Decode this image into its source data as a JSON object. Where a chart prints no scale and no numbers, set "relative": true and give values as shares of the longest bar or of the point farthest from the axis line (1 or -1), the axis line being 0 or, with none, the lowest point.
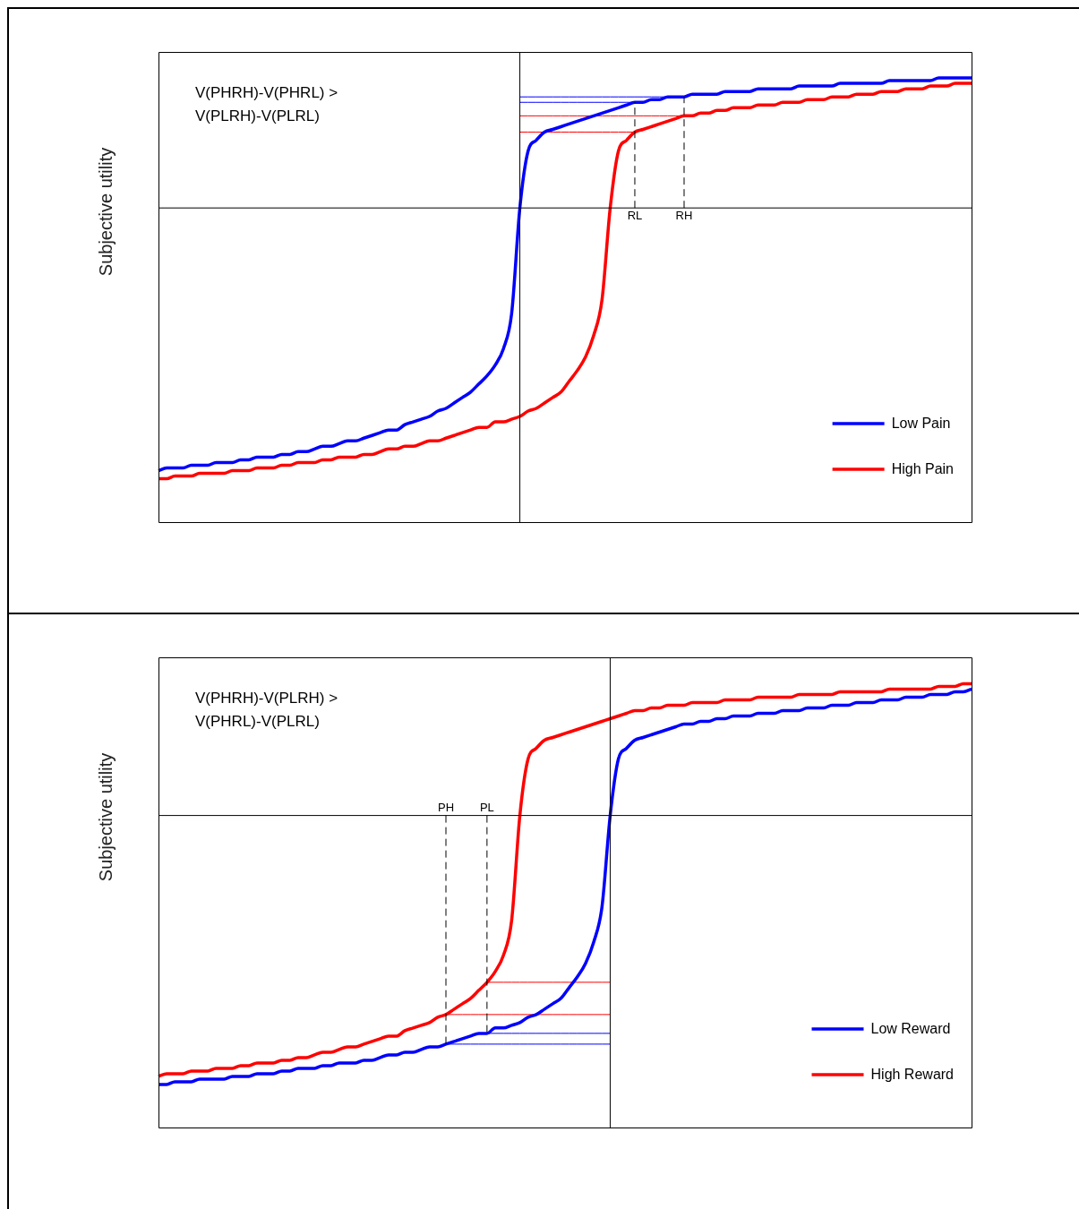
{
  "chart_data": [
    {
      "type": "line",
      "title": "V(PHRH)-V(PHRL) > V(PLRH)-V(PLRL)",
      "ylabel": "Subjective utility",
      "relative": true,
      "marker": "none",
      "tick_labels": false,
      "legend": "bottom right",
      "categories": [
        null,
        null,
        null,
        null,
        null,
        null,
        null,
        null,
        null,
        null,
        null,
        null,
        null,
        null,
        null,
        null,
        null,
        null,
        null,
        null,
        null,
        null,
        null,
        null,
        null,
        null,
        null,
        null,
        null,
        null,
        null,
        null,
        null,
        null,
        null,
        null,
        null,
        null,
        null,
        null,
        null,
        null,
        null,
        null,
        null,
        null,
        null,
        null,
        null,
        null,
        null,
        null,
        null,
        null,
        null,
        null,
        null,
        null,
        null,
        null,
        null,
        null,
        null,
        null,
        null,
        null,
        null,
        null,
        null,
        null,
        null,
        null,
        null,
        null,
        null,
        null,
        null,
        null,
        null,
        null,
        null,
        null,
        null,
        null,
        null,
        null,
        null,
        null,
        null,
        null,
        null,
        null,
        null,
        null,
        null,
        null,
        null,
        null,
        null,
        null
      ],
      "annotations": [
        "RL",
        "RH"
      ],
      "series": [
        {
          "name": "Low Pain",
          "color": "#0000ff",
          "values": [
            -0.97,
            -0.96,
            -0.96,
            -0.96,
            -0.95,
            -0.95,
            -0.95,
            -0.94,
            -0.94,
            -0.94,
            -0.93,
            -0.93,
            -0.92,
            -0.92,
            -0.92,
            -0.91,
            -0.91,
            -0.9,
            -0.9,
            -0.89,
            -0.88,
            -0.88,
            -0.87,
            -0.86,
            -0.86,
            -0.85,
            -0.84,
            -0.83,
            -0.82,
            -0.82,
            -0.8,
            -0.79,
            -0.78,
            -0.77,
            -0.75,
            -0.74,
            -0.72,
            -0.7,
            -0.68,
            -0.65,
            -0.62,
            -0.58,
            -0.52,
            -0.39,
            0,
            0.21,
            0.25,
            0.28,
            0.29,
            0.3,
            0.31,
            0.32,
            0.33,
            0.34,
            0.35,
            0.36,
            0.37,
            0.38,
            0.39,
            0.39,
            0.4,
            0.4,
            0.41,
            0.41,
            0.41,
            0.42,
            0.42,
            0.42,
            0.42,
            0.43,
            0.43,
            0.43,
            0.43,
            0.44,
            0.44,
            0.44,
            0.44,
            0.44,
            0.45,
            0.45,
            0.45,
            0.45,
            0.45,
            0.46,
            0.46,
            0.46,
            0.46,
            0.46,
            0.46,
            0.47,
            0.47,
            0.47,
            0.47,
            0.47,
            0.47,
            0.48,
            0.48,
            0.48,
            0.48,
            0.48
          ]
        },
        {
          "name": "High Pain",
          "color": "#ff0000",
          "values": [
            -1.0,
            -1.0,
            -0.99,
            -0.99,
            -0.99,
            -0.98,
            -0.98,
            -0.98,
            -0.98,
            -0.97,
            -0.97,
            -0.97,
            -0.96,
            -0.96,
            -0.96,
            -0.95,
            -0.95,
            -0.94,
            -0.94,
            -0.94,
            -0.93,
            -0.93,
            -0.92,
            -0.92,
            -0.92,
            -0.91,
            -0.91,
            -0.9,
            -0.89,
            -0.89,
            -0.88,
            -0.88,
            -0.87,
            -0.86,
            -0.86,
            -0.85,
            -0.84,
            -0.83,
            -0.82,
            -0.81,
            -0.81,
            -0.79,
            -0.79,
            -0.78,
            -0.77,
            -0.75,
            -0.74,
            -0.72,
            -0.7,
            -0.68,
            -0.64,
            -0.6,
            -0.55,
            -0.47,
            -0.34,
            0,
            0.21,
            0.25,
            0.28,
            0.29,
            0.3,
            0.31,
            0.32,
            0.33,
            0.34,
            0.34,
            0.35,
            0.35,
            0.36,
            0.36,
            0.37,
            0.37,
            0.37,
            0.38,
            0.38,
            0.38,
            0.39,
            0.39,
            0.39,
            0.4,
            0.4,
            0.4,
            0.41,
            0.41,
            0.41,
            0.42,
            0.42,
            0.42,
            0.43,
            0.43,
            0.43,
            0.44,
            0.44,
            0.44,
            0.45,
            0.45,
            0.45,
            0.46,
            0.46,
            0.46
          ]
        },
        {
          "color": "#0000ff",
          "values": [
            null,
            null,
            null,
            null,
            null,
            null,
            null,
            null,
            null,
            null,
            null,
            null,
            null,
            null,
            null,
            null,
            null,
            null,
            null,
            null,
            null,
            null,
            null,
            null,
            null,
            null,
            null,
            null,
            null,
            null,
            null,
            null,
            null,
            null,
            null,
            null,
            null,
            null,
            null,
            null,
            null,
            null,
            null,
            null,
            0.39,
            0.39,
            0.39,
            0.39,
            0.39,
            0.39,
            0.39,
            0.39,
            0.39,
            0.39,
            0.39,
            0.39,
            0.39,
            0.39,
            0.39,
            null,
            null,
            null,
            null,
            null,
            null,
            null,
            null,
            null,
            null,
            null,
            null,
            null,
            null,
            null,
            null,
            null,
            null,
            null,
            null,
            null,
            null,
            null,
            null,
            null,
            null,
            null,
            null,
            null,
            null,
            null,
            null,
            null,
            null,
            null,
            null,
            null,
            null,
            null,
            null,
            null
          ]
        },
        {
          "color": "#0000ff",
          "values": [
            null,
            null,
            null,
            null,
            null,
            null,
            null,
            null,
            null,
            null,
            null,
            null,
            null,
            null,
            null,
            null,
            null,
            null,
            null,
            null,
            null,
            null,
            null,
            null,
            null,
            null,
            null,
            null,
            null,
            null,
            null,
            null,
            null,
            null,
            null,
            null,
            null,
            null,
            null,
            null,
            null,
            null,
            null,
            null,
            0.41,
            0.41,
            0.41,
            0.41,
            0.41,
            0.41,
            0.41,
            0.41,
            0.41,
            0.41,
            0.41,
            0.41,
            0.41,
            0.41,
            0.41,
            0.41,
            0.41,
            0.41,
            0.41,
            0.41,
            0.41,
            null,
            null,
            null,
            null,
            null,
            null,
            null,
            null,
            null,
            null,
            null,
            null,
            null,
            null,
            null,
            null,
            null,
            null,
            null,
            null,
            null,
            null,
            null,
            null,
            null,
            null,
            null,
            null,
            null,
            null,
            null,
            null,
            null,
            null,
            null
          ]
        },
        {
          "color": "#ff0000",
          "values": [
            null,
            null,
            null,
            null,
            null,
            null,
            null,
            null,
            null,
            null,
            null,
            null,
            null,
            null,
            null,
            null,
            null,
            null,
            null,
            null,
            null,
            null,
            null,
            null,
            null,
            null,
            null,
            null,
            null,
            null,
            null,
            null,
            null,
            null,
            null,
            null,
            null,
            null,
            null,
            null,
            null,
            null,
            null,
            null,
            0.28,
            0.28,
            0.28,
            0.28,
            0.28,
            0.28,
            0.28,
            0.28,
            0.28,
            0.28,
            0.28,
            0.28,
            0.28,
            0.28,
            0.28,
            null,
            null,
            null,
            null,
            null,
            null,
            null,
            null,
            null,
            null,
            null,
            null,
            null,
            null,
            null,
            null,
            null,
            null,
            null,
            null,
            null,
            null,
            null,
            null,
            null,
            null,
            null,
            null,
            null,
            null,
            null,
            null,
            null,
            null,
            null,
            null,
            null,
            null,
            null,
            null,
            null
          ]
        },
        {
          "color": "#ff0000",
          "values": [
            null,
            null,
            null,
            null,
            null,
            null,
            null,
            null,
            null,
            null,
            null,
            null,
            null,
            null,
            null,
            null,
            null,
            null,
            null,
            null,
            null,
            null,
            null,
            null,
            null,
            null,
            null,
            null,
            null,
            null,
            null,
            null,
            null,
            null,
            null,
            null,
            null,
            null,
            null,
            null,
            null,
            null,
            null,
            null,
            0.34,
            0.34,
            0.34,
            0.34,
            0.34,
            0.34,
            0.34,
            0.34,
            0.34,
            0.34,
            0.34,
            0.34,
            0.34,
            0.34,
            0.34,
            0.34,
            0.34,
            0.34,
            0.34,
            0.34,
            0.34,
            null,
            null,
            null,
            null,
            null,
            null,
            null,
            null,
            null,
            null,
            null,
            null,
            null,
            null,
            null,
            null,
            null,
            null,
            null,
            null,
            null,
            null,
            null,
            null,
            null,
            null,
            null,
            null,
            null,
            null,
            null,
            null,
            null,
            null,
            null
          ]
        }
      ]
    },
    {
      "type": "line",
      "title": "V(PHRH)-V(PLRH) > V(PHRL)-V(PLRL)",
      "ylabel": "Subjective utility",
      "relative": true,
      "marker": "none",
      "tick_labels": false,
      "legend": "bottom right",
      "categories": [
        null,
        null,
        null,
        null,
        null,
        null,
        null,
        null,
        null,
        null,
        null,
        null,
        null,
        null,
        null,
        null,
        null,
        null,
        null,
        null,
        null,
        null,
        null,
        null,
        null,
        null,
        null,
        null,
        null,
        null,
        null,
        null,
        null,
        null,
        null,
        null,
        null,
        null,
        null,
        null,
        null,
        null,
        null,
        null,
        null,
        null,
        null,
        null,
        null,
        null,
        null,
        null,
        null,
        null,
        null,
        null,
        null,
        null,
        null,
        null,
        null,
        null,
        null,
        null,
        null,
        null,
        null,
        null,
        null,
        null,
        null,
        null,
        null,
        null,
        null,
        null,
        null,
        null,
        null,
        null,
        null,
        null,
        null,
        null,
        null,
        null,
        null,
        null,
        null,
        null,
        null,
        null,
        null,
        null,
        null,
        null,
        null,
        null,
        null,
        null
      ],
      "annotations": [
        "PH",
        "PL"
      ],
      "series": [
        {
          "name": "Low Reward",
          "color": "#0000ff",
          "values": [
            -1.0,
            -1.0,
            -0.99,
            -0.99,
            -0.99,
            -0.98,
            -0.98,
            -0.98,
            -0.98,
            -0.97,
            -0.97,
            -0.97,
            -0.96,
            -0.96,
            -0.96,
            -0.95,
            -0.95,
            -0.94,
            -0.94,
            -0.94,
            -0.93,
            -0.93,
            -0.92,
            -0.92,
            -0.92,
            -0.91,
            -0.91,
            -0.9,
            -0.89,
            -0.89,
            -0.88,
            -0.88,
            -0.87,
            -0.86,
            -0.86,
            -0.85,
            -0.84,
            -0.83,
            -0.82,
            -0.81,
            -0.81,
            -0.79,
            -0.79,
            -0.78,
            -0.77,
            -0.75,
            -0.74,
            -0.72,
            -0.7,
            -0.68,
            -0.64,
            -0.6,
            -0.55,
            -0.47,
            -0.34,
            0,
            0.21,
            0.25,
            0.28,
            0.29,
            0.3,
            0.31,
            0.32,
            0.33,
            0.34,
            0.34,
            0.35,
            0.35,
            0.36,
            0.36,
            0.37,
            0.37,
            0.37,
            0.38,
            0.38,
            0.38,
            0.39,
            0.39,
            0.39,
            0.4,
            0.4,
            0.4,
            0.41,
            0.41,
            0.41,
            0.42,
            0.42,
            0.42,
            0.43,
            0.43,
            0.43,
            0.44,
            0.44,
            0.44,
            0.45,
            0.45,
            0.45,
            0.46,
            0.46,
            0.47
          ]
        },
        {
          "name": "High Reward",
          "color": "#ff0000",
          "values": [
            -0.97,
            -0.96,
            -0.96,
            -0.96,
            -0.95,
            -0.95,
            -0.95,
            -0.94,
            -0.94,
            -0.94,
            -0.93,
            -0.93,
            -0.92,
            -0.92,
            -0.92,
            -0.91,
            -0.91,
            -0.9,
            -0.9,
            -0.89,
            -0.88,
            -0.88,
            -0.87,
            -0.86,
            -0.86,
            -0.85,
            -0.84,
            -0.83,
            -0.82,
            -0.82,
            -0.8,
            -0.79,
            -0.78,
            -0.77,
            -0.75,
            -0.74,
            -0.72,
            -0.7,
            -0.68,
            -0.65,
            -0.62,
            -0.58,
            -0.52,
            -0.39,
            0,
            0.21,
            0.25,
            0.28,
            0.29,
            0.3,
            0.31,
            0.32,
            0.33,
            0.34,
            0.35,
            0.36,
            0.37,
            0.38,
            0.39,
            0.39,
            0.4,
            0.4,
            0.41,
            0.41,
            0.41,
            0.42,
            0.42,
            0.42,
            0.42,
            0.43,
            0.43,
            0.43,
            0.43,
            0.44,
            0.44,
            0.44,
            0.44,
            0.44,
            0.45,
            0.45,
            0.45,
            0.45,
            0.45,
            0.46,
            0.46,
            0.46,
            0.46,
            0.46,
            0.46,
            0.47,
            0.47,
            0.47,
            0.47,
            0.47,
            0.47,
            0.48,
            0.48,
            0.48,
            0.49,
            0.49
          ]
        },
        {
          "color": "#ff0000",
          "values": [
            null,
            null,
            null,
            null,
            null,
            null,
            null,
            null,
            null,
            null,
            null,
            null,
            null,
            null,
            null,
            null,
            null,
            null,
            null,
            null,
            null,
            null,
            null,
            null,
            null,
            null,
            null,
            null,
            null,
            null,
            null,
            null,
            null,
            null,
            null,
            -0.74,
            -0.74,
            -0.74,
            -0.74,
            -0.74,
            -0.74,
            -0.74,
            -0.74,
            -0.74,
            -0.74,
            -0.74,
            -0.74,
            -0.74,
            -0.74,
            -0.74,
            -0.74,
            -0.74,
            -0.74,
            -0.74,
            -0.74,
            -0.74,
            null,
            null,
            null,
            null,
            null,
            null,
            null,
            null,
            null,
            null,
            null,
            null,
            null,
            null,
            null,
            null,
            null,
            null,
            null,
            null,
            null,
            null,
            null,
            null,
            null,
            null,
            null,
            null,
            null,
            null,
            null,
            null,
            null,
            null,
            null,
            null,
            null,
            null,
            null,
            null,
            null,
            null,
            null,
            null
          ]
        },
        {
          "color": "#ff0000",
          "values": [
            null,
            null,
            null,
            null,
            null,
            null,
            null,
            null,
            null,
            null,
            null,
            null,
            null,
            null,
            null,
            null,
            null,
            null,
            null,
            null,
            null,
            null,
            null,
            null,
            null,
            null,
            null,
            null,
            null,
            null,
            null,
            null,
            null,
            null,
            null,
            null,
            null,
            null,
            null,
            null,
            -0.62,
            -0.62,
            -0.62,
            -0.62,
            -0.62,
            -0.62,
            -0.62,
            -0.62,
            -0.62,
            -0.62,
            -0.62,
            -0.62,
            -0.62,
            -0.62,
            -0.62,
            -0.62,
            null,
            null,
            null,
            null,
            null,
            null,
            null,
            null,
            null,
            null,
            null,
            null,
            null,
            null,
            null,
            null,
            null,
            null,
            null,
            null,
            null,
            null,
            null,
            null,
            null,
            null,
            null,
            null,
            null,
            null,
            null,
            null,
            null,
            null,
            null,
            null,
            null,
            null,
            null,
            null,
            null,
            null,
            null,
            null
          ]
        },
        {
          "color": "#0000ff",
          "values": [
            null,
            null,
            null,
            null,
            null,
            null,
            null,
            null,
            null,
            null,
            null,
            null,
            null,
            null,
            null,
            null,
            null,
            null,
            null,
            null,
            null,
            null,
            null,
            null,
            null,
            null,
            null,
            null,
            null,
            null,
            null,
            null,
            null,
            null,
            null,
            -0.85,
            -0.85,
            -0.85,
            -0.85,
            -0.85,
            -0.85,
            -0.85,
            -0.85,
            -0.85,
            -0.85,
            -0.85,
            -0.85,
            -0.85,
            -0.85,
            -0.85,
            -0.85,
            -0.85,
            -0.85,
            -0.85,
            -0.85,
            -0.85,
            null,
            null,
            null,
            null,
            null,
            null,
            null,
            null,
            null,
            null,
            null,
            null,
            null,
            null,
            null,
            null,
            null,
            null,
            null,
            null,
            null,
            null,
            null,
            null,
            null,
            null,
            null,
            null,
            null,
            null,
            null,
            null,
            null,
            null,
            null,
            null,
            null,
            null,
            null,
            null,
            null,
            null,
            null,
            null
          ]
        },
        {
          "color": "#0000ff",
          "values": [
            null,
            null,
            null,
            null,
            null,
            null,
            null,
            null,
            null,
            null,
            null,
            null,
            null,
            null,
            null,
            null,
            null,
            null,
            null,
            null,
            null,
            null,
            null,
            null,
            null,
            null,
            null,
            null,
            null,
            null,
            null,
            null,
            null,
            null,
            null,
            null,
            null,
            null,
            null,
            null,
            -0.81,
            -0.81,
            -0.81,
            -0.81,
            -0.81,
            -0.81,
            -0.81,
            -0.81,
            -0.81,
            -0.81,
            -0.81,
            -0.81,
            -0.81,
            -0.81,
            -0.81,
            -0.81,
            null,
            null,
            null,
            null,
            null,
            null,
            null,
            null,
            null,
            null,
            null,
            null,
            null,
            null,
            null,
            null,
            null,
            null,
            null,
            null,
            null,
            null,
            null,
            null,
            null,
            null,
            null,
            null,
            null,
            null,
            null,
            null,
            null,
            null,
            null,
            null,
            null,
            null,
            null,
            null,
            null,
            null,
            null,
            null
          ]
        }
      ]
    }
  ]
}
